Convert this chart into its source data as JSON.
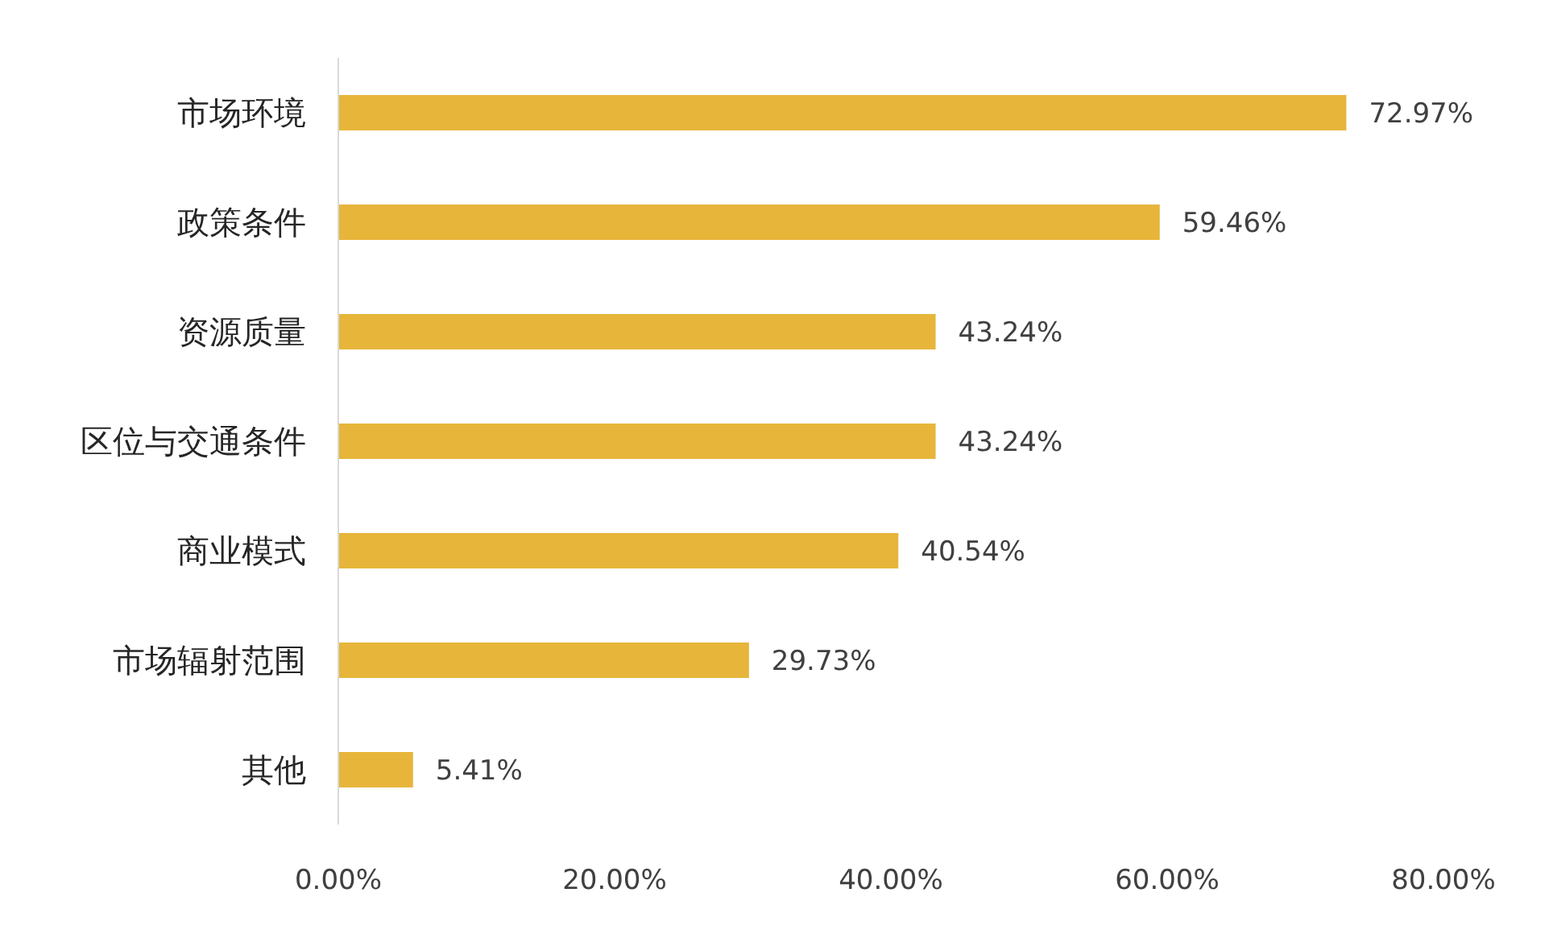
{
  "chart_data": {
    "type": "bar",
    "orientation": "horizontal",
    "categories": [
      "市场环境",
      "政策条件",
      "资源质量",
      "区位与交通条件",
      "商业模式",
      "市场辐射范围",
      "其他"
    ],
    "values": [
      72.97,
      59.46,
      43.24,
      43.24,
      40.54,
      29.73,
      5.41
    ],
    "value_labels": [
      "72.97%",
      "59.46%",
      "43.24%",
      "43.24%",
      "40.54%",
      "29.73%",
      "5.41%"
    ],
    "color": "#e6b53a",
    "xlim": [
      0,
      80
    ],
    "xticks": [
      {
        "value": 0,
        "label": "0.00%"
      },
      {
        "value": 20,
        "label": "20.00%"
      },
      {
        "value": 40,
        "label": "40.00%"
      },
      {
        "value": 60,
        "label": "60.00%"
      },
      {
        "value": 80,
        "label": "80.00%"
      }
    ],
    "grid": false,
    "legend": false
  }
}
